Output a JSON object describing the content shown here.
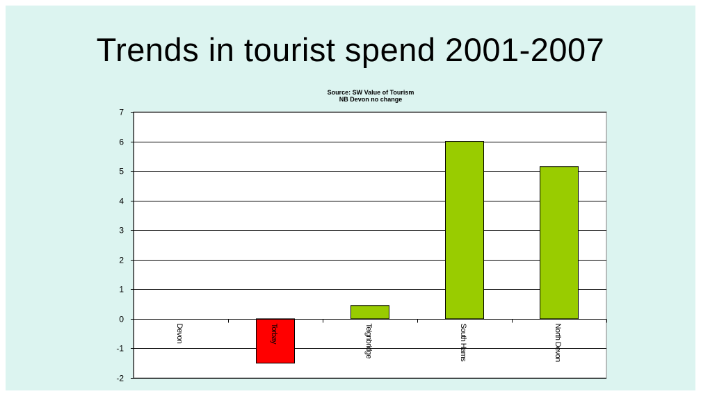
{
  "slide": {
    "title": "Trends in tourist spend 2001-2007",
    "background": "#dcf4f0"
  },
  "chart_data": {
    "type": "bar",
    "title": "",
    "subtitle_lines": [
      "Source: SW Value of Tourism",
      "NB Devon no change"
    ],
    "categories": [
      "Devon",
      "Torbay",
      "Teignbridge",
      "South Hams",
      "North Devon"
    ],
    "values": [
      0,
      -1.5,
      0.45,
      6.0,
      5.15
    ],
    "bar_colors": [
      "#99cc00",
      "#ff0000",
      "#99cc00",
      "#99cc00",
      "#99cc00"
    ],
    "ylim": [
      -2,
      7
    ],
    "yticks": [
      -2,
      -1,
      0,
      1,
      2,
      3,
      4,
      5,
      6,
      7
    ],
    "grid": true,
    "legend": "none",
    "xlabel": "",
    "ylabel": ""
  }
}
